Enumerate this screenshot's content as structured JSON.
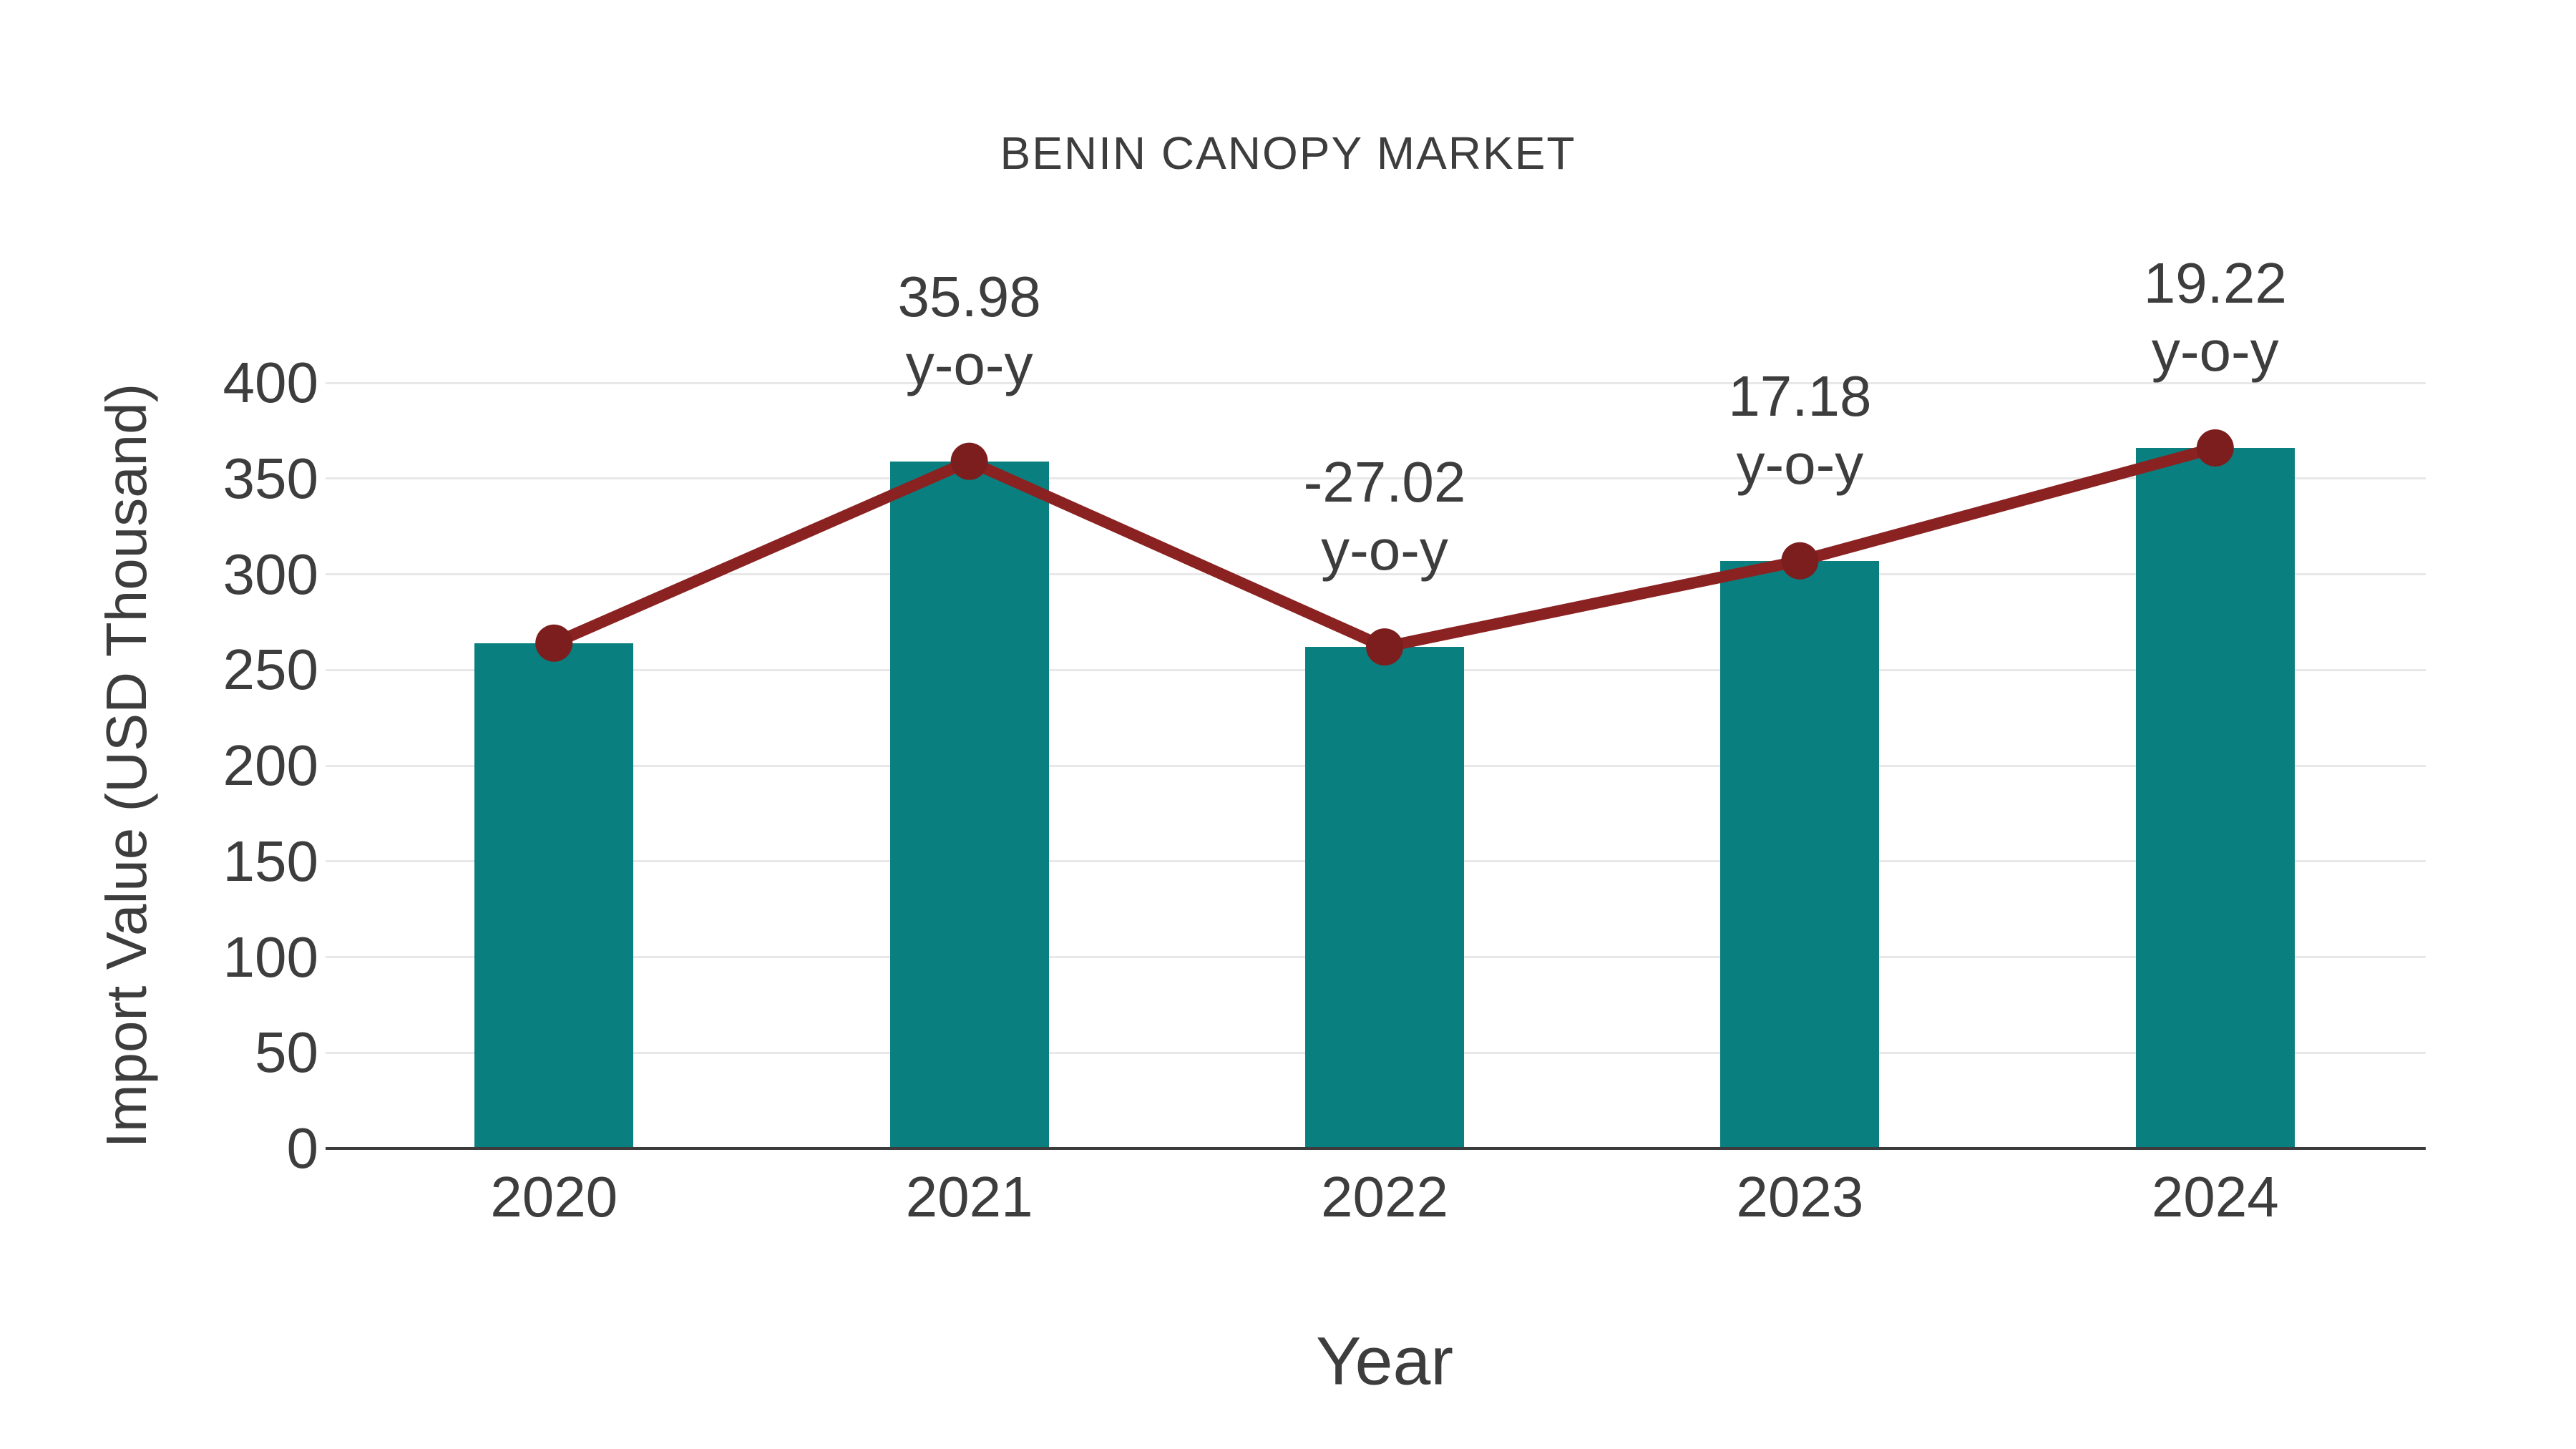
{
  "chart_data": {
    "type": "bar",
    "title": "BENIN CANOPY MARKET",
    "xlabel": "Year",
    "ylabel": "Import Value (USD Thousand)",
    "categories": [
      "2020",
      "2021",
      "2022",
      "2023",
      "2024"
    ],
    "values": [
      264,
      359,
      262,
      307,
      366
    ],
    "overlay_line": {
      "name": "year-over-year trend line",
      "values": [
        264,
        359,
        262,
        307,
        366
      ]
    },
    "annotations": [
      {
        "category": "2021",
        "lines": [
          "35.98",
          "y-o-y"
        ]
      },
      {
        "category": "2022",
        "lines": [
          "-27.02",
          "y-o-y"
        ]
      },
      {
        "category": "2023",
        "lines": [
          "17.18",
          "y-o-y"
        ]
      },
      {
        "category": "2024",
        "lines": [
          "19.22",
          "y-o-y"
        ]
      }
    ],
    "ylim": [
      0,
      400
    ],
    "yticks": [
      0,
      50,
      100,
      150,
      200,
      250,
      300,
      350,
      400
    ],
    "grid": true,
    "legend_position": "none",
    "colors": {
      "bar": "#0a7f7f",
      "line": "#8b2222",
      "marker": "#7d1e1e",
      "gridline": "#e8e8e8",
      "axis_line": "#3c3c3c",
      "text": "#3d3d3d"
    }
  }
}
